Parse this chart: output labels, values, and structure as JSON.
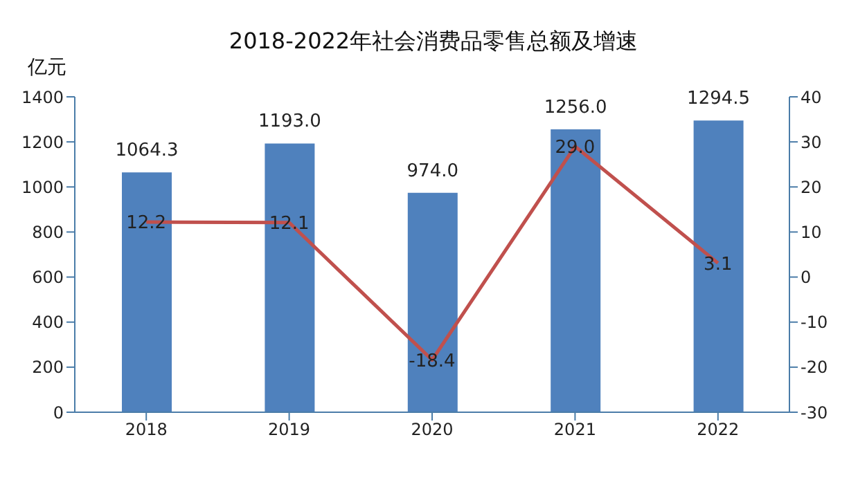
{
  "chart_data": {
    "type": "bar",
    "title": "2018-2022年社会消费品零售总额及增速",
    "ylabel": "亿元",
    "categories": [
      "2018",
      "2019",
      "2020",
      "2021",
      "2022"
    ],
    "series": [
      {
        "color": "#4f81bd",
        "values": [
          1064.3,
          1193.0,
          974.0,
          1256.0,
          1294.5
        ],
        "value_labels": [
          "1064.3",
          "1193.0",
          "974.0",
          "1256.0",
          "1294.5"
        ]
      },
      {
        "type": "line",
        "axis": "y2",
        "color": "#c0504d",
        "values": [
          12.2,
          12.1,
          -18.4,
          29.0,
          3.1
        ],
        "value_labels": [
          "12.2",
          "12.1",
          "-18.4",
          "29.0",
          "3.1"
        ]
      }
    ],
    "ylim": [
      0,
      1400
    ],
    "yticks": [
      0,
      200,
      400,
      600,
      800,
      1000,
      1200,
      1400
    ],
    "y2lim": [
      -30,
      40
    ],
    "y2ticks": [
      -30,
      -20,
      -10,
      0,
      10,
      20,
      30,
      40
    ],
    "grid": false,
    "legend": false
  }
}
